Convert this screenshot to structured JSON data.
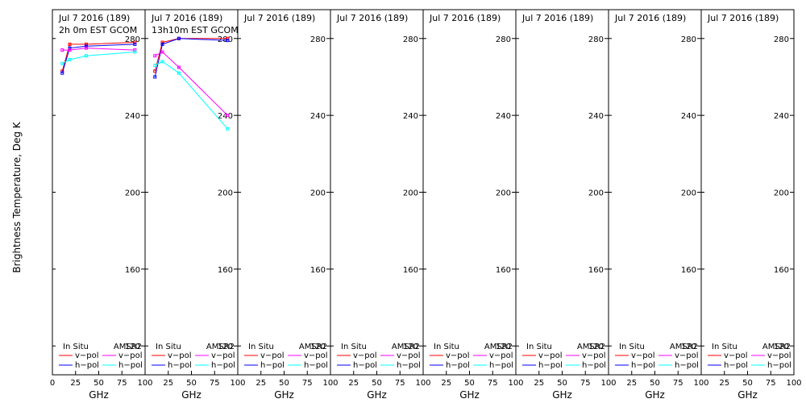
{
  "chart_data": {
    "type": "line",
    "ylabel": "Brightness Temperature, Deg K",
    "xlabel": "GHz",
    "ylim": [
      105,
      295
    ],
    "xlim": [
      0,
      100
    ],
    "y_ticks": [
      120,
      160,
      200,
      240,
      280
    ],
    "x_ticks": [
      0,
      25,
      50,
      75,
      100
    ],
    "legend": {
      "position": "bottom",
      "group_in_situ": "In Situ",
      "group_amsr2": "AMSR2",
      "v_pol": "v−pol",
      "h_pol": "h−pol"
    },
    "colors": {
      "in_situ_v": "#ff0000",
      "in_situ_h": "#0000ff",
      "amsr2_v": "#ff00ff",
      "amsr2_h": "#00ffff",
      "frame": "#000000"
    },
    "panels": [
      {
        "title1": "Jul 7 2016 (189)",
        "title2": "2h 0m EST GCOM",
        "series": [
          {
            "key": "in_situ_v",
            "x": [
              10.65,
              18.7,
              36.5,
              89
            ],
            "y": [
              263,
              277,
              277,
              278
            ]
          },
          {
            "key": "in_situ_h",
            "x": [
              10.65,
              18.7,
              36.5,
              89
            ],
            "y": [
              262,
              275,
              276,
              277
            ]
          },
          {
            "key": "amsr2_v",
            "x": [
              10.65,
              18.7,
              36.5,
              89
            ],
            "y": [
              274,
              274,
              275,
              274
            ]
          },
          {
            "key": "amsr2_h",
            "x": [
              10.65,
              18.7,
              36.5,
              89
            ],
            "y": [
              267,
              269,
              271,
              273
            ]
          }
        ]
      },
      {
        "title1": "Jul 7 2016 (189)",
        "title2": "13h10m EST GCOM",
        "series": [
          {
            "key": "in_situ_v",
            "x": [
              10.65,
              18.7,
              36.5,
              89
            ],
            "y": [
              263,
              278,
              280,
              280
            ]
          },
          {
            "key": "in_situ_h",
            "x": [
              10.65,
              18.7,
              36.5,
              89
            ],
            "y": [
              260,
              277,
              280,
              279
            ]
          },
          {
            "key": "amsr2_v",
            "x": [
              10.65,
              18.7,
              36.5,
              89
            ],
            "y": [
              271,
              273,
              265,
              240
            ]
          },
          {
            "key": "amsr2_h",
            "x": [
              10.65,
              18.7,
              36.5,
              89
            ],
            "y": [
              266,
              268,
              262,
              233
            ]
          }
        ]
      },
      {
        "title1": "Jul 7 2016 (189)",
        "title2": "",
        "series": []
      },
      {
        "title1": "Jul 7 2016 (189)",
        "title2": "",
        "series": []
      },
      {
        "title1": "Jul 7 2016 (189)",
        "title2": "",
        "series": []
      },
      {
        "title1": "Jul 7 2016 (189)",
        "title2": "",
        "series": []
      },
      {
        "title1": "Jul 7 2016 (189)",
        "title2": "",
        "series": []
      },
      {
        "title1": "Jul 7 2016 (189)",
        "title2": "",
        "series": []
      }
    ]
  }
}
